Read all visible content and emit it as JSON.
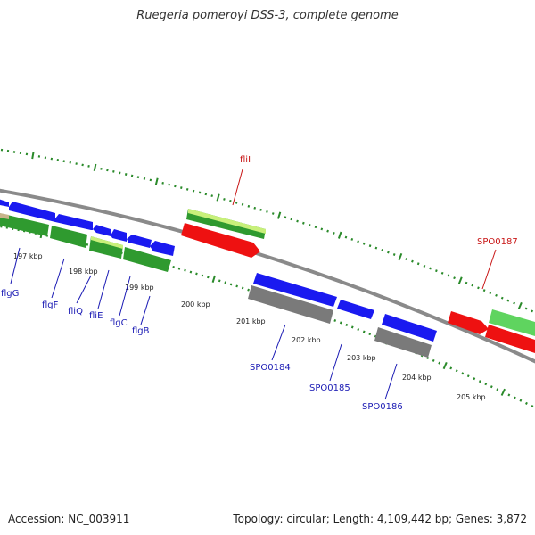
{
  "title": "Ruegeria pomeroyi DSS-3, complete genome",
  "footer": {
    "accession": "Accession: NC_003911",
    "summary": "Topology: circular; Length: 4,109,442 bp; Genes: 3,872"
  },
  "colors": {
    "forward_gene": "#1a1af0",
    "reverse_gene": "#7a7a7a",
    "rna": "#ee1111",
    "cds_green": "#2f9a2f",
    "cds_lightgreen": "#5fd45f",
    "cds_yellowgreen": "#c8f07a",
    "cds_tan": "#c8b48a",
    "backbone": "#8a8a8a",
    "tick": "#2a8a2a",
    "label_blue": "#1a1ab4",
    "label_red": "#c81414"
  },
  "kbp_labels": [
    "197 kbp",
    "198 kbp",
    "199 kbp",
    "200 kbp",
    "201 kbp",
    "202 kbp",
    "203 kbp",
    "204 kbp",
    "205 kbp"
  ],
  "gene_labels": [
    {
      "text": "flgG",
      "color": "blue"
    },
    {
      "text": "flgF",
      "color": "blue"
    },
    {
      "text": "fliQ",
      "color": "blue"
    },
    {
      "text": "fliE",
      "color": "blue"
    },
    {
      "text": "flgC",
      "color": "blue"
    },
    {
      "text": "flgB",
      "color": "blue"
    },
    {
      "text": "fliI",
      "color": "red"
    },
    {
      "text": "SPO0184",
      "color": "blue"
    },
    {
      "text": "SPO0185",
      "color": "blue"
    },
    {
      "text": "SPO0186",
      "color": "blue"
    },
    {
      "text": "SPO0187",
      "color": "red"
    }
  ]
}
